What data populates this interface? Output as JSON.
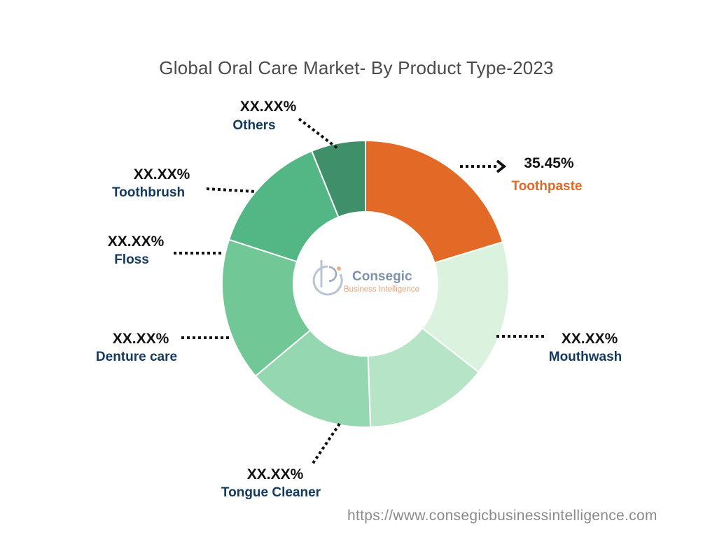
{
  "chart_data": {
    "type": "pie",
    "title": "Global Oral Care Market- By Product Type-2023",
    "donut": true,
    "slices": [
      {
        "label": "Toothpaste",
        "value_label": "35.45%",
        "value": 35.45,
        "color": "#e36a26",
        "label_color": "#e36a26"
      },
      {
        "label": "Mouthwash",
        "value_label": "XX.XX%",
        "color": "#dbf2de",
        "label_color": "#12395f"
      },
      {
        "label": "Tongue Cleaner",
        "value_label": "XX.XX%",
        "color": "#b5e4c6",
        "label_color": "#12395f"
      },
      {
        "label": "Denture care",
        "value_label": "XX.XX%",
        "color": "#94d7b0",
        "label_color": "#12395f"
      },
      {
        "label": "Floss",
        "value_label": "XX.XX%",
        "color": "#72c797",
        "label_color": "#12395f"
      },
      {
        "label": "Toothbrush",
        "value_label": "XX.XX%",
        "color": "#52b784",
        "label_color": "#12395f"
      },
      {
        "label": "Others",
        "value_label": "XX.XX%",
        "color": "#3f906a",
        "label_color": "#12395f"
      }
    ]
  },
  "logo": {
    "name": "Consegic",
    "subtitle": "Business Intelligence"
  },
  "footer": {
    "url": "https://www.consegicbusinessintelligence.com"
  }
}
